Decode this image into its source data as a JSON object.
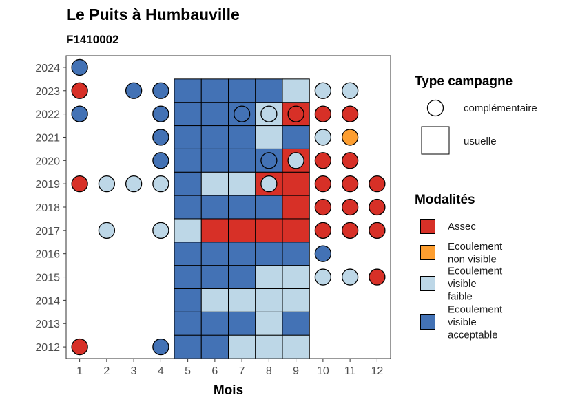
{
  "chart_data": {
    "type": "heatmap",
    "title": "Le Puits à Humbauville",
    "subtitle": "F1410002",
    "xlabel": "Mois",
    "ylabel": "",
    "x_ticks": [
      "1",
      "2",
      "3",
      "4",
      "5",
      "6",
      "7",
      "8",
      "9",
      "10",
      "11",
      "12"
    ],
    "y_ticks": [
      "2012",
      "2013",
      "2014",
      "2015",
      "2016",
      "2017",
      "2018",
      "2019",
      "2020",
      "2021",
      "2022",
      "2023",
      "2024"
    ],
    "xlim": [
      0.5,
      12.5
    ],
    "ylim": [
      2011.5,
      2024.5
    ],
    "grid": false,
    "legend_position": "right",
    "legend_campagne": {
      "title": "Type campagne",
      "items": [
        {
          "key": "complementaire",
          "label": "complémentaire",
          "shape": "circle"
        },
        {
          "key": "usuelle",
          "label": "usuelle",
          "shape": "square"
        }
      ]
    },
    "legend_modalites": {
      "title": "Modalités",
      "items": [
        {
          "key": "A",
          "lines": [
            "Assec"
          ],
          "color": "#d73027"
        },
        {
          "key": "N",
          "lines": [
            "Ecoulement",
            "non visible"
          ],
          "color": "#fd9e30"
        },
        {
          "key": "F",
          "lines": [
            "Ecoulement",
            "visible",
            "faible"
          ],
          "color": "#bdd7e7"
        },
        {
          "key": "V",
          "lines": [
            "Ecoulement",
            "visible",
            "acceptable"
          ],
          "color": "#4372b5"
        }
      ]
    },
    "usuelle_months": [
      5,
      6,
      7,
      8,
      9
    ],
    "usuelle": {
      "2012": [
        "V",
        "V",
        "F",
        "F",
        "F"
      ],
      "2013": [
        "V",
        "V",
        "V",
        "F",
        "V"
      ],
      "2014": [
        "V",
        "F",
        "F",
        "F",
        "F"
      ],
      "2015": [
        "V",
        "V",
        "V",
        "F",
        "F"
      ],
      "2016": [
        "V",
        "V",
        "V",
        "V",
        "V"
      ],
      "2017": [
        "F",
        "A",
        "A",
        "A",
        "A"
      ],
      "2018": [
        "V",
        "V",
        "V",
        "V",
        "A"
      ],
      "2019": [
        "V",
        "F",
        "F",
        "A",
        "A"
      ],
      "2020": [
        "V",
        "V",
        "V",
        "V",
        "A"
      ],
      "2021": [
        "V",
        "V",
        "V",
        "F",
        "V"
      ],
      "2022": [
        "V",
        "V",
        "V",
        "F",
        "A"
      ],
      "2023": [
        "V",
        "V",
        "V",
        "V",
        "F"
      ]
    },
    "complementaire": [
      {
        "year": 2024,
        "month": 1,
        "v": "V"
      },
      {
        "year": 2023,
        "month": 1,
        "v": "A"
      },
      {
        "year": 2023,
        "month": 3,
        "v": "V"
      },
      {
        "year": 2023,
        "month": 4,
        "v": "V"
      },
      {
        "year": 2023,
        "month": 10,
        "v": "F"
      },
      {
        "year": 2023,
        "month": 11,
        "v": "F"
      },
      {
        "year": 2022,
        "month": 1,
        "v": "V"
      },
      {
        "year": 2022,
        "month": 4,
        "v": "V"
      },
      {
        "year": 2022,
        "month": 7,
        "v": "V"
      },
      {
        "year": 2022,
        "month": 8,
        "v": "F"
      },
      {
        "year": 2022,
        "month": 9,
        "v": "A"
      },
      {
        "year": 2022,
        "month": 10,
        "v": "A"
      },
      {
        "year": 2022,
        "month": 11,
        "v": "A"
      },
      {
        "year": 2021,
        "month": 4,
        "v": "V"
      },
      {
        "year": 2021,
        "month": 10,
        "v": "F"
      },
      {
        "year": 2021,
        "month": 11,
        "v": "N"
      },
      {
        "year": 2020,
        "month": 4,
        "v": "V"
      },
      {
        "year": 2020,
        "month": 8,
        "v": "V"
      },
      {
        "year": 2020,
        "month": 9,
        "v": "F"
      },
      {
        "year": 2020,
        "month": 10,
        "v": "A"
      },
      {
        "year": 2020,
        "month": 11,
        "v": "A"
      },
      {
        "year": 2019,
        "month": 1,
        "v": "A"
      },
      {
        "year": 2019,
        "month": 2,
        "v": "F"
      },
      {
        "year": 2019,
        "month": 3,
        "v": "F"
      },
      {
        "year": 2019,
        "month": 4,
        "v": "F"
      },
      {
        "year": 2019,
        "month": 8,
        "v": "F"
      },
      {
        "year": 2019,
        "month": 10,
        "v": "A"
      },
      {
        "year": 2019,
        "month": 11,
        "v": "A"
      },
      {
        "year": 2019,
        "month": 12,
        "v": "A"
      },
      {
        "year": 2018,
        "month": 10,
        "v": "A"
      },
      {
        "year": 2018,
        "month": 11,
        "v": "A"
      },
      {
        "year": 2018,
        "month": 12,
        "v": "A"
      },
      {
        "year": 2017,
        "month": 2,
        "v": "F"
      },
      {
        "year": 2017,
        "month": 4,
        "v": "F"
      },
      {
        "year": 2017,
        "month": 10,
        "v": "A"
      },
      {
        "year": 2017,
        "month": 11,
        "v": "A"
      },
      {
        "year": 2017,
        "month": 12,
        "v": "A"
      },
      {
        "year": 2016,
        "month": 10,
        "v": "V"
      },
      {
        "year": 2015,
        "month": 10,
        "v": "F"
      },
      {
        "year": 2015,
        "month": 11,
        "v": "F"
      },
      {
        "year": 2015,
        "month": 12,
        "v": "A"
      },
      {
        "year": 2012,
        "month": 1,
        "v": "A"
      },
      {
        "year": 2012,
        "month": 4,
        "v": "V"
      }
    ]
  }
}
